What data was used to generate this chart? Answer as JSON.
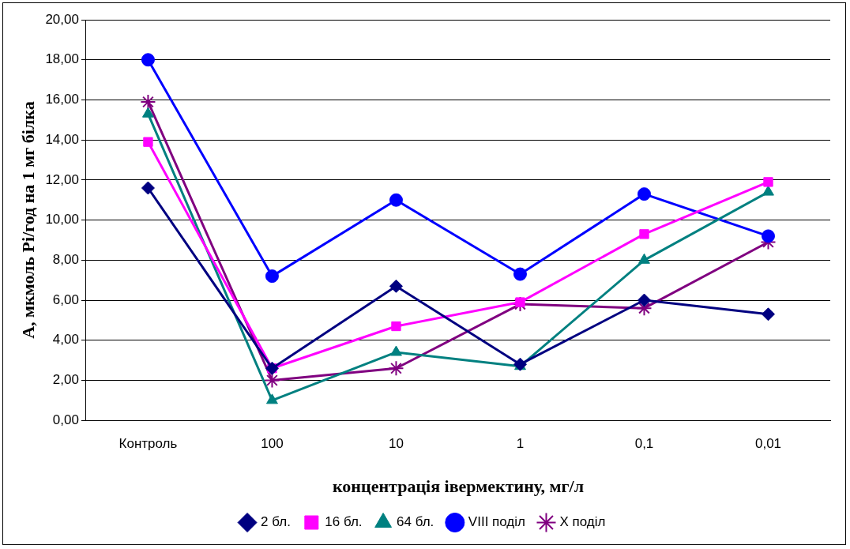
{
  "chart_data": {
    "type": "line",
    "xlabel": "концентрація івермектину, мг/л",
    "ylabel": "А, мкмоль Pi/год на 1 мг білка",
    "categories": [
      "Контроль",
      "100",
      "10",
      "1",
      "0,1",
      "0,01"
    ],
    "ylim": [
      0,
      20
    ],
    "yticks": [
      {
        "value": 0,
        "label": "0,00"
      },
      {
        "value": 2,
        "label": "2,00"
      },
      {
        "value": 4,
        "label": "4,00"
      },
      {
        "value": 6,
        "label": "6,00"
      },
      {
        "value": 8,
        "label": "8,00"
      },
      {
        "value": 10,
        "label": "10,00"
      },
      {
        "value": 12,
        "label": "12,00"
      },
      {
        "value": 14,
        "label": "14,00"
      },
      {
        "value": 16,
        "label": "16,00"
      },
      {
        "value": 18,
        "label": "18,00"
      },
      {
        "value": 20,
        "label": "20,00"
      }
    ],
    "grid": "y",
    "legend": "bottom",
    "series": [
      {
        "name": "2 бл.",
        "color": "#000080",
        "marker": "diamond",
        "values": [
          11.6,
          2.6,
          6.7,
          2.8,
          6.0,
          5.3
        ]
      },
      {
        "name": "16 бл.",
        "color": "#ff00ff",
        "marker": "square",
        "values": [
          13.9,
          2.6,
          4.7,
          5.9,
          9.3,
          11.9
        ]
      },
      {
        "name": "64 бл.",
        "color": "#008080",
        "marker": "triangle",
        "values": [
          15.3,
          1.0,
          3.4,
          2.7,
          8.0,
          11.4
        ]
      },
      {
        "name": "VIII поділ",
        "color": "#0000ff",
        "marker": "circle",
        "values": [
          18.0,
          7.2,
          11.0,
          7.3,
          11.3,
          9.2
        ]
      },
      {
        "name": "X поділ",
        "color": "#800080",
        "marker": "cross",
        "values": [
          15.9,
          2.0,
          2.6,
          5.8,
          5.6,
          8.9
        ]
      }
    ]
  }
}
